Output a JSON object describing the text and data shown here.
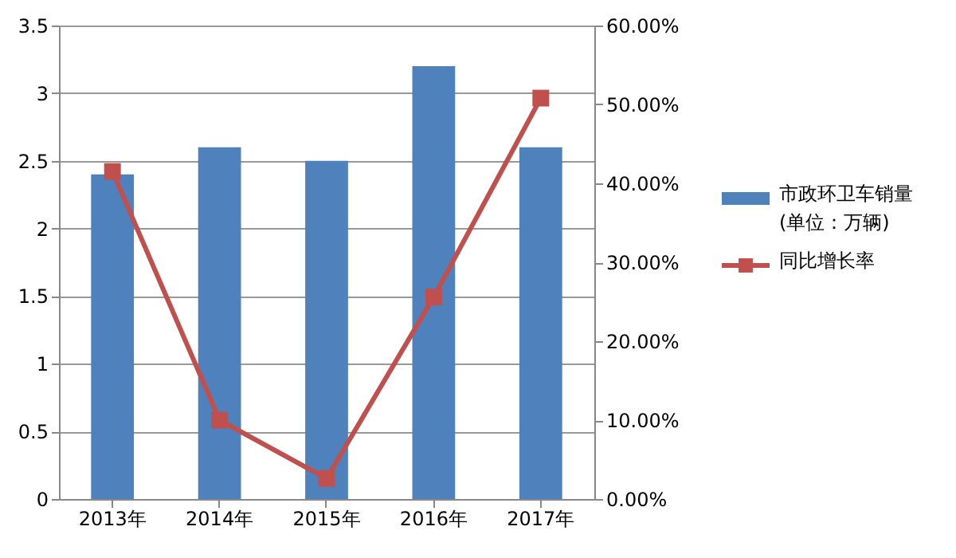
{
  "chart_data": {
    "type": "bar",
    "categories": [
      "2013年",
      "2014年",
      "2015年",
      "2016年",
      "2017年"
    ],
    "series": [
      {
        "name": "市政环卫车销量 (单位：万辆)",
        "color": "#4f81bd",
        "values": [
          2.4,
          2.6,
          2.5,
          3.2,
          2.6
        ]
      },
      {
        "name": "同比增长率",
        "type": "line",
        "axis": "y2",
        "color": "#c0504d",
        "marker": "square",
        "values": [
          41.5,
          10.0,
          2.6,
          25.6,
          50.8
        ]
      }
    ],
    "ylim": [
      0,
      3.5
    ],
    "yticks": [
      0,
      0.5,
      1,
      1.5,
      2,
      2.5,
      3,
      3.5
    ],
    "y2lim": [
      0,
      60
    ],
    "y2ticks": [
      {
        "value": 0,
        "label": "0.00%"
      },
      {
        "value": 10,
        "label": "10.00%"
      },
      {
        "value": 20,
        "label": "20.00%"
      },
      {
        "value": 30,
        "label": "30.00%"
      },
      {
        "value": 40,
        "label": "40.00%"
      },
      {
        "value": 50,
        "label": "50.00%"
      },
      {
        "value": 60,
        "label": "60.00%"
      }
    ],
    "grid": "y",
    "legend": "right"
  }
}
